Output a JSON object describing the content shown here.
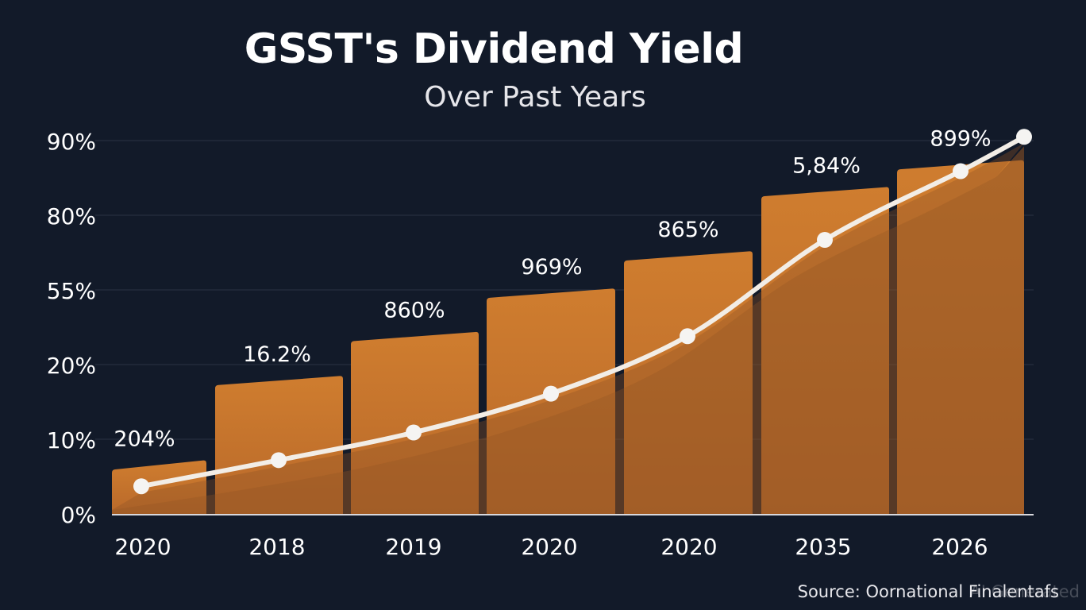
{
  "chart_data": {
    "type": "bar",
    "title": "GSST's Dividend Yield",
    "subtitle": "Over Past Years",
    "categories": [
      "2020",
      "2018",
      "2019",
      "2020",
      "2020",
      "2035",
      "2026"
    ],
    "y_ticks": [
      "0%",
      "10%",
      "20%",
      "55%",
      "80%",
      "90%"
    ],
    "bar_data_labels": [
      "204%",
      "16.2%",
      "860%",
      "969%",
      "865%",
      "5,84%",
      "899%"
    ],
    "bar_levels": [
      0.72,
      1.85,
      2.44,
      3.02,
      3.52,
      4.38,
      4.74
    ],
    "line_levels": [
      0.37,
      0.72,
      1.09,
      1.61,
      2.38,
      3.67,
      4.59,
      5.05
    ],
    "ylim": [
      0,
      5
    ],
    "grid": true,
    "legend": "none",
    "source": "Source: Oornational Finalentafs",
    "watermark": "AI Generated",
    "colors": {
      "background": "#121a29",
      "bar": "#c7782c",
      "bar_shadow": "#8f5424",
      "line": "#f2ede6",
      "grid": "#2a3344",
      "text": "#ffffff"
    }
  }
}
